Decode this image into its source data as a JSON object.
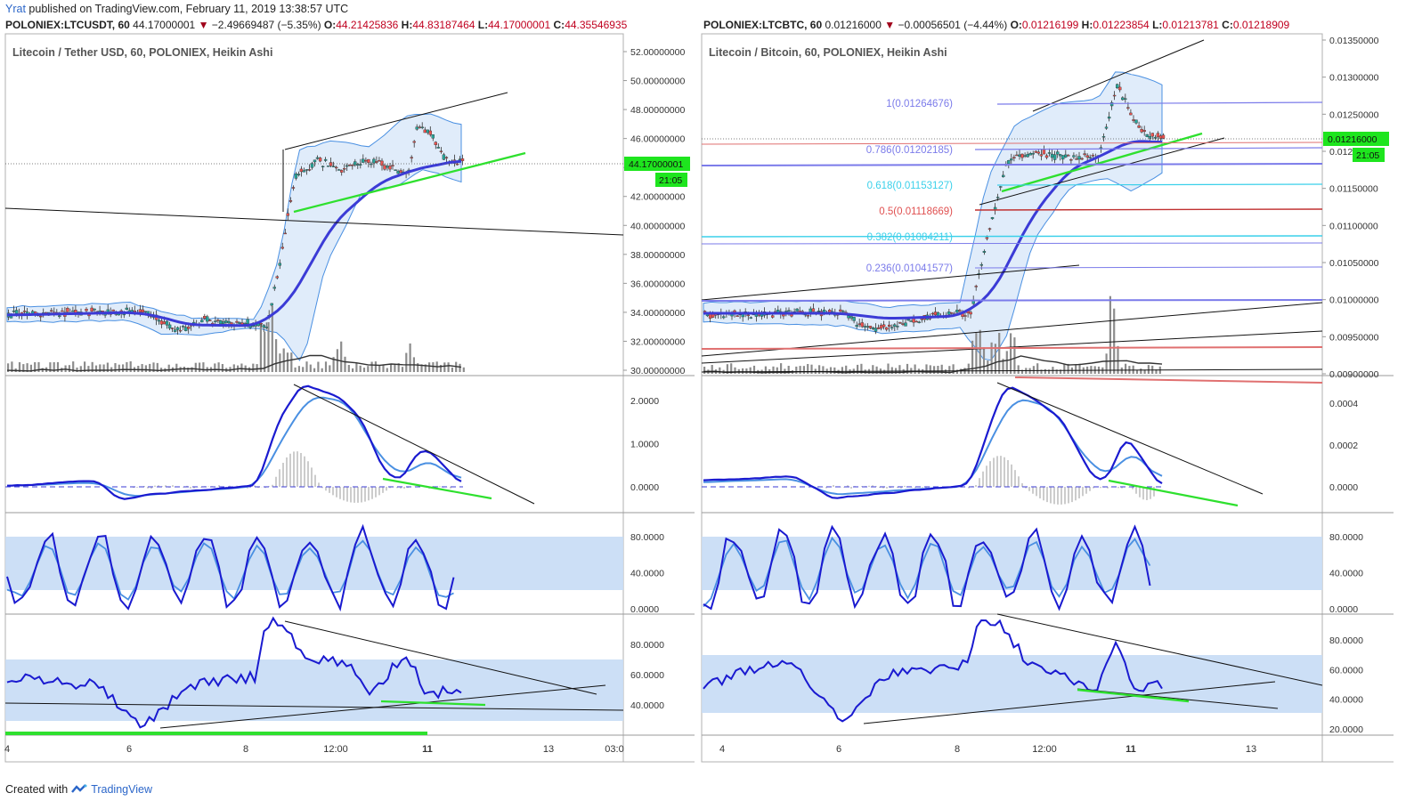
{
  "publish": {
    "user": "Yrat",
    "text": " published on TradingView.com, February 11, 2019 13:38:57 UTC"
  },
  "footer": {
    "prefix": "Created with",
    "brand": "TradingView"
  },
  "charts": [
    {
      "symbol_line": {
        "symbol": "POLONIEX:LTCUSDT, 60",
        "price": "44.17000001",
        "arrow": "▼",
        "change": "−2.49669487 (−5.35%)",
        "o_label": "O:",
        "o": "44.21425836",
        "h_label": "H:",
        "h": "44.83187464",
        "l_label": "L:",
        "l": "44.17000001",
        "c_label": "C:",
        "c": "44.35546935"
      },
      "title": "Litecoin / Tether USD, 60, POLONIEX, Heikin Ashi",
      "price_axis": [
        "52.00000000",
        "50.00000000",
        "48.00000000",
        "46.00000000",
        "44.00000000",
        "42.00000000",
        "40.00000000",
        "38.00000000",
        "36.00000000",
        "34.00000000",
        "32.00000000",
        "30.00000000"
      ],
      "last_price_tag": "44.17000001",
      "countdown": "21:05",
      "macd_axis": [
        "2.0000",
        "1.0000",
        "0.0000"
      ],
      "stoch_axis": [
        "80.0000",
        "40.0000",
        "0.0000"
      ],
      "rsi_axis": [
        "80.0000",
        "60.0000",
        "40.0000"
      ],
      "time_axis": [
        "4",
        "6",
        "8",
        "12:00",
        "11",
        "13",
        "03:0"
      ],
      "fib": []
    },
    {
      "symbol_line": {
        "symbol": "POLONIEX:LTCBTC, 60",
        "price": "0.01216000",
        "arrow": "▼",
        "change": "−0.00056501 (−4.44%)",
        "o_label": "O:",
        "o": "0.01216199",
        "h_label": "H:",
        "h": "0.01223854",
        "l_label": "L:",
        "l": "0.01213781",
        "c_label": "C:",
        "c": "0.01218909"
      },
      "title": "Litecoin / Bitcoin, 60, POLONIEX, Heikin Ashi",
      "price_axis": [
        "0.01350000",
        "0.01300000",
        "0.01250000",
        "0.01200000",
        "0.01150000",
        "0.01100000",
        "0.01050000",
        "0.01000000",
        "0.00950000",
        "0.00900000"
      ],
      "last_price_tag": "0.01216000",
      "countdown": "21:05",
      "macd_axis": [
        "0.0004",
        "0.0002",
        "0.0000"
      ],
      "stoch_axis": [
        "80.0000",
        "40.0000",
        "0.0000"
      ],
      "rsi_axis": [
        "80.0000",
        "60.0000",
        "40.0000",
        "20.0000"
      ],
      "time_axis": [
        "4",
        "6",
        "8",
        "12:00",
        "11",
        "13"
      ],
      "fib": [
        {
          "label": "1(0.01264676)",
          "color": "#7b7bea"
        },
        {
          "label": "0.786(0.01202185)",
          "color": "#7b7bea"
        },
        {
          "label": "0.618(0.01153127)",
          "color": "#3ad0ea"
        },
        {
          "label": "0.5(0.01118669)",
          "color": "#e05050"
        },
        {
          "label": "0.382(0.01084211)",
          "color": "#3ad0ea"
        },
        {
          "label": "0.236(0.01041577)",
          "color": "#7b7bea"
        }
      ]
    }
  ],
  "colors": {
    "up": "#26a69a",
    "down": "#ef5350",
    "ma": "#3b3bd6",
    "band": "#c7dcf5",
    "macd": "#1a1ad0",
    "signal": "#4a90e2",
    "trend_green": "#3ad13a"
  }
}
